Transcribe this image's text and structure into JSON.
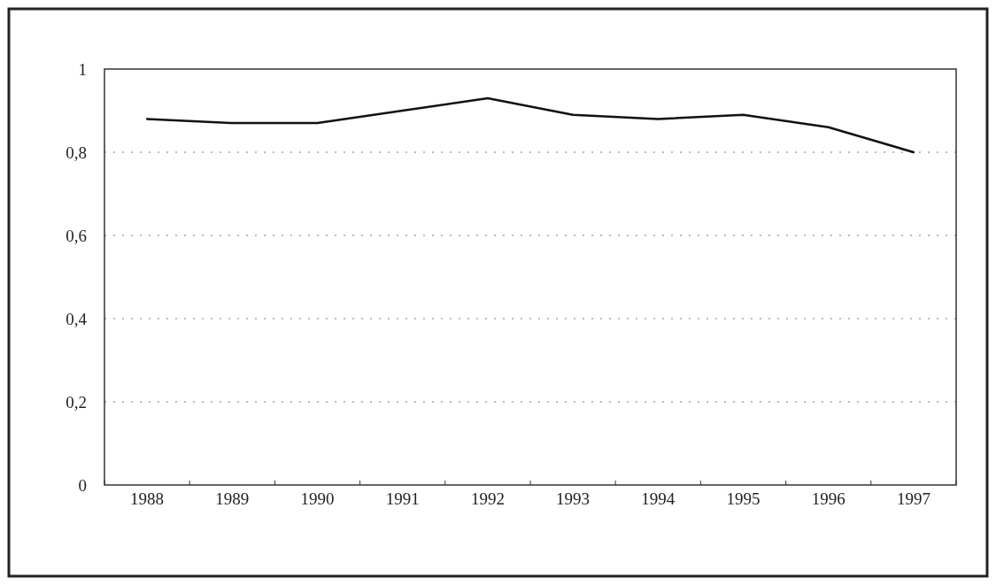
{
  "chart_data": {
    "type": "line",
    "categories": [
      "1988",
      "1989",
      "1990",
      "1991",
      "1992",
      "1993",
      "1994",
      "1995",
      "1996",
      "1997"
    ],
    "series": [
      {
        "color": "#111111",
        "values": [
          0.88,
          0.87,
          0.87,
          0.9,
          0.93,
          0.89,
          0.88,
          0.89,
          0.86,
          0.8
        ]
      }
    ],
    "ylim": [
      0,
      1
    ],
    "yticks": [
      0,
      {
        "value": 0.2,
        "label": "0,2"
      },
      {
        "value": 0.4,
        "label": "0,4"
      },
      {
        "value": 0.6,
        "label": "0,6"
      },
      {
        "value": 0.8,
        "label": "0,8"
      },
      1
    ],
    "grid": "y",
    "marker": "none",
    "line_style": "solid"
  }
}
